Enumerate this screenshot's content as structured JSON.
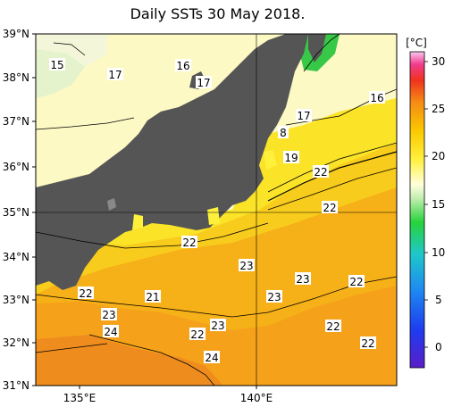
{
  "title": "Daily SSTs 30 May 2018.",
  "lat_labels": [
    "39°N",
    "38°N",
    "37°N",
    "36°N",
    "35°N",
    "34°N",
    "33°N",
    "32°N",
    "31°N"
  ],
  "lon_labels": [
    "135°E",
    "140°E"
  ],
  "colorbar": {
    "unit": "[°C]",
    "ticks": [
      "30",
      "25",
      "20",
      "15",
      "10",
      "5",
      "0"
    ]
  },
  "isotherm_labels": [
    {
      "text": "15",
      "key": "l15"
    },
    {
      "text": "17",
      "key": "l17a"
    },
    {
      "text": "16",
      "key": "l16a"
    },
    {
      "text": "17",
      "key": "l17b"
    },
    {
      "text": "16",
      "key": "l16b"
    },
    {
      "text": "17",
      "key": "l17c"
    },
    {
      "text": "8",
      "key": "l8"
    },
    {
      "text": "19",
      "key": "l19"
    },
    {
      "text": "22",
      "key": "l22a"
    },
    {
      "text": "22",
      "key": "l22b"
    },
    {
      "text": "22",
      "key": "l22c"
    },
    {
      "text": "23",
      "key": "l23a"
    },
    {
      "text": "23",
      "key": "l23b"
    },
    {
      "text": "23",
      "key": "l23c"
    },
    {
      "text": "22",
      "key": "l22d"
    },
    {
      "text": "21",
      "key": "l21"
    },
    {
      "text": "22",
      "key": "l22e"
    },
    {
      "text": "23",
      "key": "l23d"
    },
    {
      "text": "24",
      "key": "l24a"
    },
    {
      "text": "23",
      "key": "l23e"
    },
    {
      "text": "22",
      "key": "l22f"
    },
    {
      "text": "22",
      "key": "l22g"
    },
    {
      "text": "22",
      "key": "l22h"
    },
    {
      "text": "24",
      "key": "l24b"
    }
  ],
  "colors": {
    "land": "#555555",
    "sea_warm": "#f6a41c",
    "sea_mid": "#fbd20c",
    "sea_cool": "#fafab4"
  }
}
